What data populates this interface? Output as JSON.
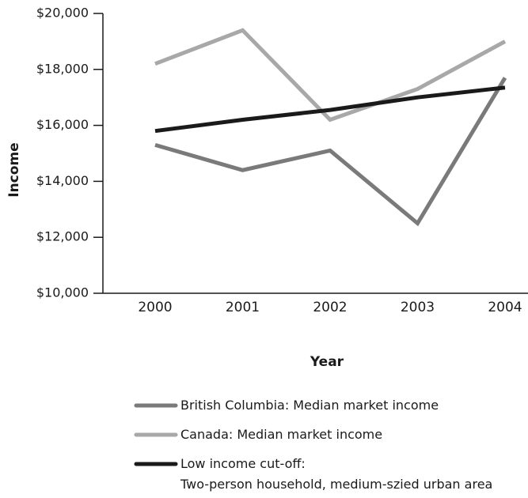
{
  "chart_data": {
    "type": "line",
    "x_label": "Year",
    "y_label": "Income",
    "categories": [
      "2000",
      "2001",
      "2002",
      "2003",
      "2004"
    ],
    "series": [
      {
        "name": "British Columbia: Median market income",
        "color": "#7a7a7a",
        "values": [
          15300,
          14400,
          15100,
          12500,
          17700
        ]
      },
      {
        "name": "Canada: Median market income",
        "color": "#a8a8a8",
        "values": [
          18200,
          19400,
          16200,
          17300,
          19000
        ]
      },
      {
        "name": "Low income cut-off:\nTwo-person household, medium-szied urban area",
        "color": "#1a1a1a",
        "values": [
          15800,
          16200,
          16550,
          17000,
          17350
        ]
      }
    ],
    "ylim": [
      10000,
      20000
    ],
    "yticks": [
      {
        "value": 10000,
        "label": "$10,000"
      },
      {
        "value": 12000,
        "label": "$12,000"
      },
      {
        "value": 14000,
        "label": "$14,000"
      },
      {
        "value": 16000,
        "label": "$16,000"
      },
      {
        "value": 18000,
        "label": "$18,000"
      },
      {
        "value": 20000,
        "label": "$20,000"
      }
    ],
    "grid": false
  }
}
